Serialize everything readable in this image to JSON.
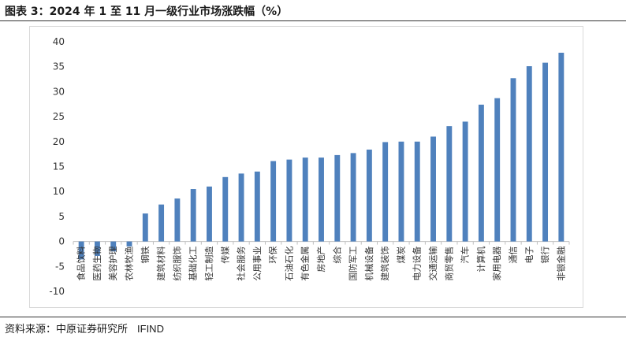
{
  "header": {
    "title": "图表 3：2024 年 1 至 11 月一级行业市场涨跌幅（%）"
  },
  "footer": {
    "source_label": "资料来源：中原证券研究所",
    "source_tail": "IFIND"
  },
  "colors": {
    "bar": "#4f81bd",
    "axis": "#bfbfbf",
    "text": "#333333"
  },
  "chart_data": {
    "type": "bar",
    "title": "2024 年 1 至 11 月一级行业市场涨跌幅（%）",
    "xlabel": "",
    "ylabel": "",
    "ylim": [
      -10,
      40
    ],
    "yticks": [
      -10,
      -5,
      0,
      5,
      10,
      15,
      20,
      25,
      30,
      35,
      40
    ],
    "grid": false,
    "categories": [
      "食品饮料",
      "医药生物",
      "美容护理",
      "农林牧渔",
      "钢铁",
      "建筑材料",
      "纺织服饰",
      "基础化工",
      "轻工制造",
      "传媒",
      "社会服务",
      "公用事业",
      "环保",
      "石油石化",
      "有色金属",
      "房地产",
      "综合",
      "国防军工",
      "机械设备",
      "建筑装饰",
      "煤炭",
      "电力设备",
      "交通运输",
      "商贸零售",
      "汽车",
      "计算机",
      "家用电器",
      "通信",
      "电子",
      "银行",
      "非银金融"
    ],
    "values": [
      -3.6,
      -2.9,
      -2.0,
      -1.0,
      5.6,
      7.4,
      8.6,
      10.5,
      11.0,
      12.9,
      13.6,
      14.0,
      16.1,
      16.4,
      16.8,
      16.8,
      17.3,
      17.7,
      18.4,
      19.9,
      20.0,
      20.0,
      21.0,
      23.1,
      24.0,
      27.4,
      28.7,
      32.7,
      35.1,
      35.8,
      37.8
    ]
  }
}
